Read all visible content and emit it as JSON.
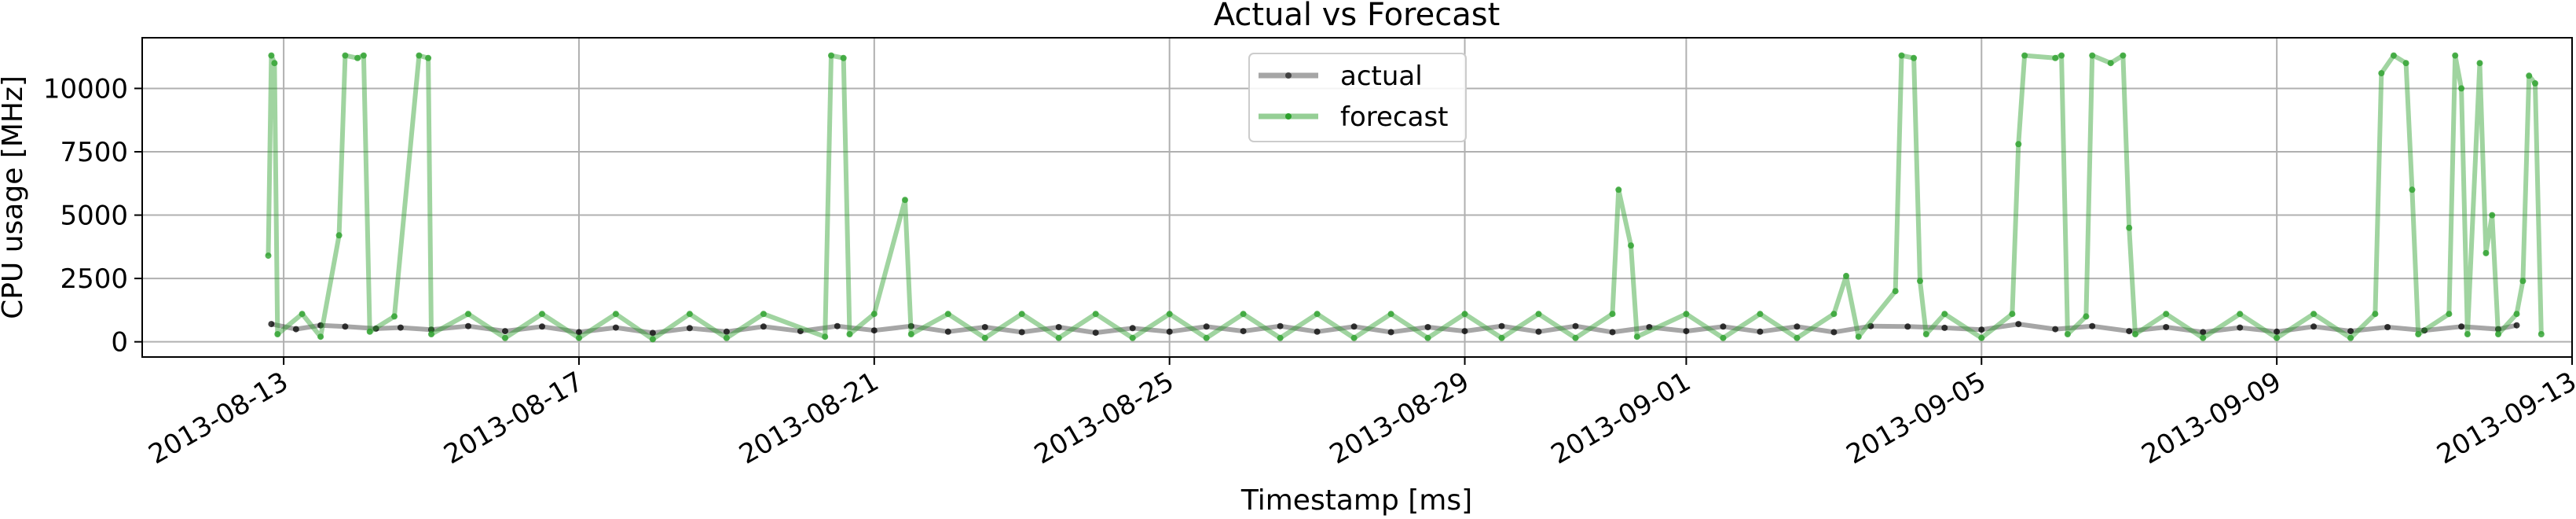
{
  "chart_data": {
    "type": "line",
    "title": "Actual vs Forecast",
    "xlabel": "Timestamp [ms]",
    "ylabel": "CPU usage [MHz]",
    "x_domain": [
      "2013-08-11T02:00",
      "2013-09-13T00:00"
    ],
    "ylim": [
      -600,
      12000
    ],
    "x_ticks": [
      "2013-08-13",
      "2013-08-17",
      "2013-08-21",
      "2013-08-25",
      "2013-08-29",
      "2013-09-01",
      "2013-09-05",
      "2013-09-09",
      "2013-09-13"
    ],
    "y_ticks": [
      0,
      2500,
      5000,
      7500,
      10000
    ],
    "grid": true,
    "legend_position": "top-center",
    "legend": [
      "actual",
      "forecast"
    ],
    "series": [
      {
        "name": "actual",
        "color": "#000000",
        "values": [
          [
            "2013-08-12T20:00",
            700
          ],
          [
            "2013-08-13T04:00",
            500
          ],
          [
            "2013-08-13T12:00",
            650
          ],
          [
            "2013-08-13T20:00",
            600
          ],
          [
            "2013-08-14T06:00",
            520
          ],
          [
            "2013-08-14T14:00",
            560
          ],
          [
            "2013-08-15T00:00",
            480
          ],
          [
            "2013-08-15T12:00",
            620
          ],
          [
            "2013-08-16T00:00",
            420
          ],
          [
            "2013-08-16T12:00",
            600
          ],
          [
            "2013-08-17T00:00",
            380
          ],
          [
            "2013-08-17T12:00",
            560
          ],
          [
            "2013-08-18T00:00",
            350
          ],
          [
            "2013-08-18T12:00",
            540
          ],
          [
            "2013-08-19T00:00",
            400
          ],
          [
            "2013-08-19T12:00",
            600
          ],
          [
            "2013-08-20T00:00",
            420
          ],
          [
            "2013-08-20T12:00",
            620
          ],
          [
            "2013-08-21T00:00",
            450
          ],
          [
            "2013-08-21T12:00",
            620
          ],
          [
            "2013-08-22T00:00",
            400
          ],
          [
            "2013-08-22T12:00",
            580
          ],
          [
            "2013-08-23T00:00",
            380
          ],
          [
            "2013-08-23T12:00",
            580
          ],
          [
            "2013-08-24T00:00",
            360
          ],
          [
            "2013-08-24T12:00",
            540
          ],
          [
            "2013-08-25T00:00",
            400
          ],
          [
            "2013-08-25T12:00",
            600
          ],
          [
            "2013-08-26T00:00",
            420
          ],
          [
            "2013-08-26T12:00",
            620
          ],
          [
            "2013-08-27T00:00",
            400
          ],
          [
            "2013-08-27T12:00",
            600
          ],
          [
            "2013-08-28T00:00",
            380
          ],
          [
            "2013-08-28T12:00",
            580
          ],
          [
            "2013-08-29T00:00",
            420
          ],
          [
            "2013-08-29T12:00",
            620
          ],
          [
            "2013-08-30T00:00",
            400
          ],
          [
            "2013-08-30T12:00",
            620
          ],
          [
            "2013-08-31T00:00",
            380
          ],
          [
            "2013-08-31T12:00",
            580
          ],
          [
            "2013-09-01T00:00",
            420
          ],
          [
            "2013-09-01T12:00",
            600
          ],
          [
            "2013-09-02T00:00",
            400
          ],
          [
            "2013-09-02T12:00",
            600
          ],
          [
            "2013-09-03T00:00",
            380
          ],
          [
            "2013-09-03T12:00",
            620
          ],
          [
            "2013-09-04T00:00",
            600
          ],
          [
            "2013-09-04T12:00",
            550
          ],
          [
            "2013-09-05T00:00",
            480
          ],
          [
            "2013-09-05T12:00",
            700
          ],
          [
            "2013-09-06T00:00",
            500
          ],
          [
            "2013-09-06T12:00",
            620
          ],
          [
            "2013-09-07T00:00",
            420
          ],
          [
            "2013-09-07T12:00",
            580
          ],
          [
            "2013-09-08T00:00",
            380
          ],
          [
            "2013-09-08T12:00",
            560
          ],
          [
            "2013-09-09T00:00",
            400
          ],
          [
            "2013-09-09T12:00",
            600
          ],
          [
            "2013-09-10T00:00",
            420
          ],
          [
            "2013-09-10T12:00",
            580
          ],
          [
            "2013-09-11T00:00",
            450
          ],
          [
            "2013-09-11T12:00",
            600
          ],
          [
            "2013-09-12T00:00",
            500
          ],
          [
            "2013-09-12T06:00",
            650
          ]
        ]
      },
      {
        "name": "forecast",
        "color": "#2ca02c",
        "values": [
          [
            "2013-08-12T19:00",
            3400
          ],
          [
            "2013-08-12T20:00",
            11300
          ],
          [
            "2013-08-12T21:00",
            11000
          ],
          [
            "2013-08-12T22:00",
            300
          ],
          [
            "2013-08-13T06:00",
            1100
          ],
          [
            "2013-08-13T12:00",
            200
          ],
          [
            "2013-08-13T18:00",
            4200
          ],
          [
            "2013-08-13T20:00",
            11300
          ],
          [
            "2013-08-14T00:00",
            11200
          ],
          [
            "2013-08-14T02:00",
            11300
          ],
          [
            "2013-08-14T04:00",
            400
          ],
          [
            "2013-08-14T12:00",
            1000
          ],
          [
            "2013-08-14T20:00",
            11300
          ],
          [
            "2013-08-14T23:00",
            11200
          ],
          [
            "2013-08-15T00:00",
            300
          ],
          [
            "2013-08-15T12:00",
            1100
          ],
          [
            "2013-08-16T00:00",
            150
          ],
          [
            "2013-08-16T12:00",
            1100
          ],
          [
            "2013-08-17T00:00",
            150
          ],
          [
            "2013-08-17T12:00",
            1100
          ],
          [
            "2013-08-18T00:00",
            100
          ],
          [
            "2013-08-18T12:00",
            1100
          ],
          [
            "2013-08-19T00:00",
            150
          ],
          [
            "2013-08-19T12:00",
            1100
          ],
          [
            "2013-08-20T08:00",
            200
          ],
          [
            "2013-08-20T10:00",
            11300
          ],
          [
            "2013-08-20T14:00",
            11200
          ],
          [
            "2013-08-20T16:00",
            300
          ],
          [
            "2013-08-21T00:00",
            1100
          ],
          [
            "2013-08-21T10:00",
            5600
          ],
          [
            "2013-08-21T12:00",
            300
          ],
          [
            "2013-08-22T00:00",
            1100
          ],
          [
            "2013-08-22T12:00",
            150
          ],
          [
            "2013-08-23T00:00",
            1100
          ],
          [
            "2013-08-23T12:00",
            150
          ],
          [
            "2013-08-24T00:00",
            1100
          ],
          [
            "2013-08-24T12:00",
            150
          ],
          [
            "2013-08-25T00:00",
            1100
          ],
          [
            "2013-08-25T12:00",
            150
          ],
          [
            "2013-08-26T00:00",
            1100
          ],
          [
            "2013-08-26T12:00",
            150
          ],
          [
            "2013-08-27T00:00",
            1100
          ],
          [
            "2013-08-27T12:00",
            150
          ],
          [
            "2013-08-28T00:00",
            1100
          ],
          [
            "2013-08-28T12:00",
            150
          ],
          [
            "2013-08-29T00:00",
            1100
          ],
          [
            "2013-08-29T12:00",
            150
          ],
          [
            "2013-08-30T00:00",
            1100
          ],
          [
            "2013-08-30T12:00",
            150
          ],
          [
            "2013-08-31T00:00",
            1100
          ],
          [
            "2013-08-31T02:00",
            6000
          ],
          [
            "2013-08-31T06:00",
            3800
          ],
          [
            "2013-08-31T08:00",
            200
          ],
          [
            "2013-09-01T00:00",
            1100
          ],
          [
            "2013-09-01T12:00",
            150
          ],
          [
            "2013-09-02T00:00",
            1100
          ],
          [
            "2013-09-02T12:00",
            150
          ],
          [
            "2013-09-03T00:00",
            1100
          ],
          [
            "2013-09-03T04:00",
            2600
          ],
          [
            "2013-09-03T08:00",
            200
          ],
          [
            "2013-09-03T20:00",
            2000
          ],
          [
            "2013-09-03T22:00",
            11300
          ],
          [
            "2013-09-04T02:00",
            11200
          ],
          [
            "2013-09-04T04:00",
            2400
          ],
          [
            "2013-09-04T06:00",
            300
          ],
          [
            "2013-09-04T12:00",
            1100
          ],
          [
            "2013-09-05T00:00",
            150
          ],
          [
            "2013-09-05T10:00",
            1100
          ],
          [
            "2013-09-05T12:00",
            7800
          ],
          [
            "2013-09-05T14:00",
            11300
          ],
          [
            "2013-09-06T00:00",
            11200
          ],
          [
            "2013-09-06T02:00",
            11300
          ],
          [
            "2013-09-06T04:00",
            300
          ],
          [
            "2013-09-06T10:00",
            1000
          ],
          [
            "2013-09-06T12:00",
            11300
          ],
          [
            "2013-09-06T18:00",
            11000
          ],
          [
            "2013-09-06T22:00",
            11300
          ],
          [
            "2013-09-07T00:00",
            4500
          ],
          [
            "2013-09-07T02:00",
            300
          ],
          [
            "2013-09-07T12:00",
            1100
          ],
          [
            "2013-09-08T00:00",
            150
          ],
          [
            "2013-09-08T12:00",
            1100
          ],
          [
            "2013-09-09T00:00",
            150
          ],
          [
            "2013-09-09T12:00",
            1100
          ],
          [
            "2013-09-10T00:00",
            150
          ],
          [
            "2013-09-10T08:00",
            1100
          ],
          [
            "2013-09-10T10:00",
            10600
          ],
          [
            "2013-09-10T14:00",
            11300
          ],
          [
            "2013-09-10T18:00",
            11000
          ],
          [
            "2013-09-10T20:00",
            6000
          ],
          [
            "2013-09-10T22:00",
            300
          ],
          [
            "2013-09-11T08:00",
            1100
          ],
          [
            "2013-09-11T10:00",
            11300
          ],
          [
            "2013-09-11T12:00",
            10000
          ],
          [
            "2013-09-11T14:00",
            300
          ],
          [
            "2013-09-11T18:00",
            11000
          ],
          [
            "2013-09-11T20:00",
            3500
          ],
          [
            "2013-09-11T22:00",
            5000
          ],
          [
            "2013-09-12T00:00",
            300
          ],
          [
            "2013-09-12T06:00",
            1100
          ],
          [
            "2013-09-12T08:00",
            2400
          ],
          [
            "2013-09-12T10:00",
            10500
          ],
          [
            "2013-09-12T12:00",
            10200
          ],
          [
            "2013-09-12T14:00",
            300
          ]
        ]
      }
    ]
  }
}
